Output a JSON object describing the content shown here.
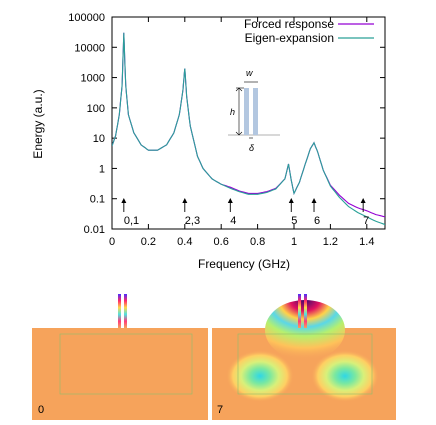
{
  "chart_data": {
    "type": "line",
    "xlabel": "Frequency (GHz)",
    "ylabel": "Energy (a.u.)",
    "xlim": [
      0,
      1.5
    ],
    "ylim": [
      0.01,
      100000
    ],
    "yscale": "log",
    "x_ticks": [
      "0",
      "0.2",
      "0.4",
      "0.6",
      "0.8",
      "1",
      "1.2",
      "1.4"
    ],
    "x_tick_values": [
      0,
      0.2,
      0.4,
      0.6,
      0.8,
      1.0,
      1.2,
      1.4
    ],
    "y_ticks": [
      "100000",
      "10000",
      "1000",
      "100",
      "10",
      "1",
      "0.1",
      "0.01"
    ],
    "y_tick_values": [
      100000,
      10000,
      1000,
      100,
      10,
      1,
      0.1,
      0.01
    ],
    "legend_position": "top-right",
    "series": [
      {
        "name": "Forced response",
        "color": "#9400d3",
        "x": [
          0.0,
          0.02,
          0.04,
          0.055,
          0.065,
          0.075,
          0.09,
          0.12,
          0.16,
          0.2,
          0.25,
          0.3,
          0.34,
          0.37,
          0.39,
          0.4,
          0.41,
          0.43,
          0.47,
          0.5,
          0.55,
          0.6,
          0.65,
          0.7,
          0.75,
          0.8,
          0.85,
          0.9,
          0.95,
          0.97,
          0.985,
          1.0,
          1.03,
          1.06,
          1.09,
          1.11,
          1.13,
          1.16,
          1.2,
          1.25,
          1.3,
          1.35,
          1.4,
          1.45,
          1.5
        ],
        "y": [
          5.5,
          12,
          60,
          500,
          30000,
          600,
          60,
          15,
          6,
          4,
          4,
          6,
          15,
          60,
          400,
          2000,
          250,
          25,
          2.5,
          1,
          0.45,
          0.3,
          0.24,
          0.18,
          0.15,
          0.15,
          0.17,
          0.22,
          0.45,
          1.4,
          0.4,
          0.15,
          0.35,
          1.3,
          4.5,
          7,
          3.5,
          0.9,
          0.28,
          0.13,
          0.07,
          0.05,
          0.04,
          0.03,
          0.025
        ]
      },
      {
        "name": "Eigen-expansion",
        "color": "#2aa198",
        "x": [
          0.0,
          0.02,
          0.04,
          0.055,
          0.065,
          0.075,
          0.09,
          0.12,
          0.16,
          0.2,
          0.25,
          0.3,
          0.34,
          0.37,
          0.39,
          0.4,
          0.41,
          0.43,
          0.47,
          0.5,
          0.55,
          0.6,
          0.65,
          0.7,
          0.75,
          0.8,
          0.85,
          0.9,
          0.95,
          0.97,
          0.985,
          1.0,
          1.03,
          1.06,
          1.09,
          1.11,
          1.13,
          1.16,
          1.2,
          1.25,
          1.3,
          1.35,
          1.4,
          1.45,
          1.5
        ],
        "y": [
          5.5,
          12,
          60,
          500,
          30000,
          600,
          60,
          15,
          6,
          4,
          4,
          6,
          15,
          60,
          400,
          2000,
          250,
          25,
          2.5,
          1,
          0.45,
          0.3,
          0.22,
          0.17,
          0.14,
          0.14,
          0.16,
          0.21,
          0.45,
          1.4,
          0.4,
          0.15,
          0.35,
          1.3,
          4.5,
          7,
          3.5,
          0.9,
          0.26,
          0.11,
          0.055,
          0.035,
          0.025,
          0.018,
          0.014
        ]
      }
    ],
    "annotations": [
      {
        "label": "0,1",
        "x": 0.065
      },
      {
        "label": "2,3",
        "x": 0.4
      },
      {
        "label": "4",
        "x": 0.65
      },
      {
        "label": "5",
        "x": 0.985
      },
      {
        "label": "6",
        "x": 1.11
      },
      {
        "label": "7",
        "x": 1.38
      }
    ]
  },
  "inset": {
    "w_label": "w",
    "h_label": "h",
    "delta_label": "δ"
  },
  "panels": [
    {
      "label": "0"
    },
    {
      "label": "7"
    }
  ]
}
